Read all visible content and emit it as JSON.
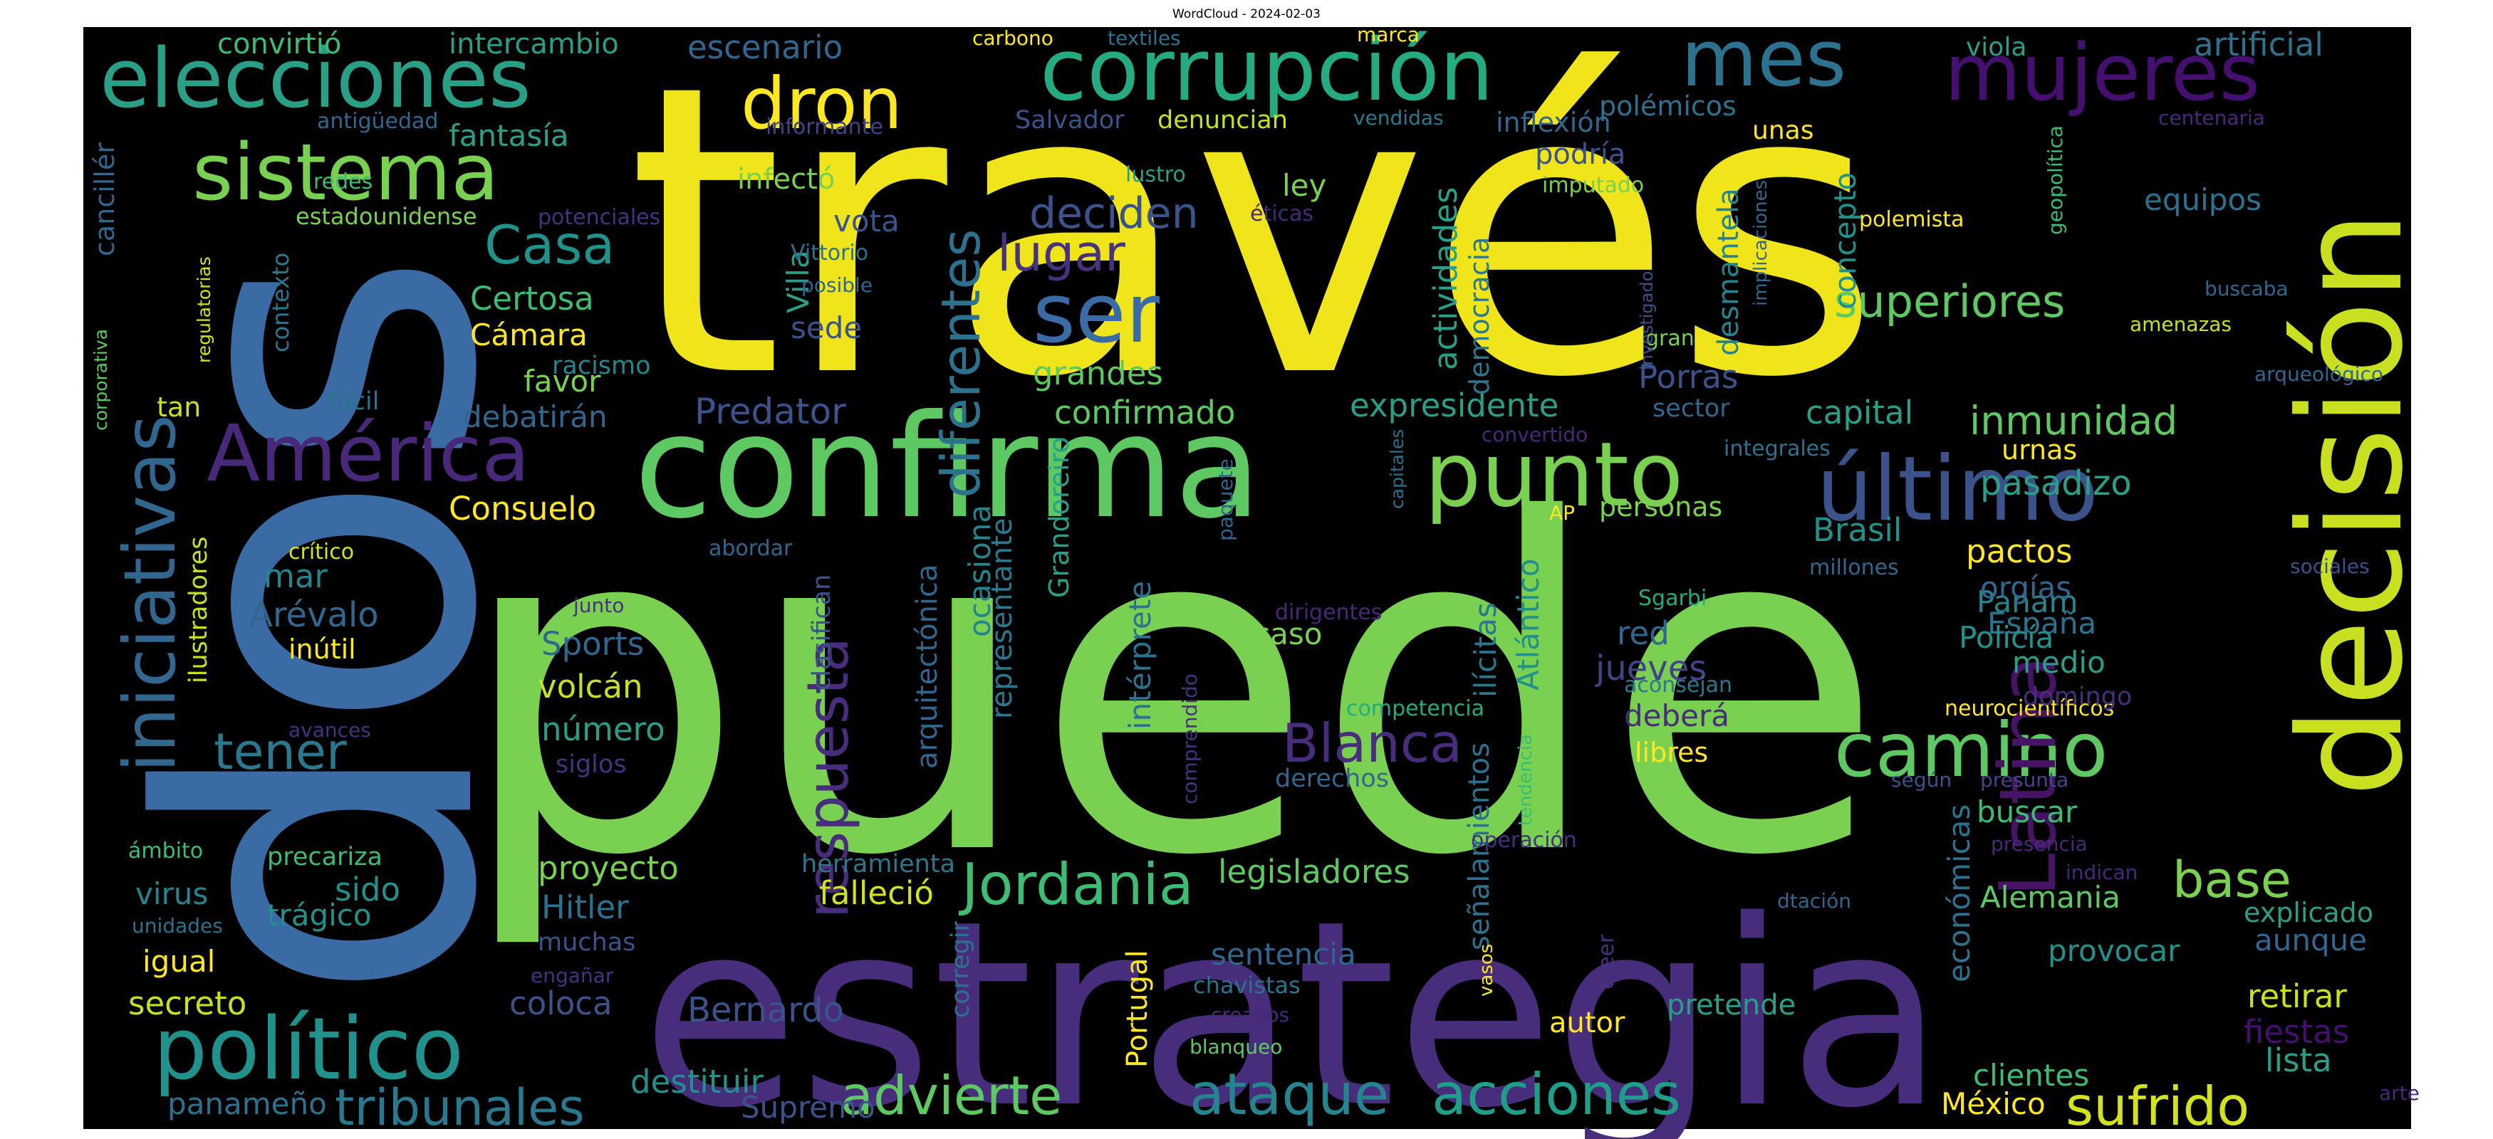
{
  "title": "WordCloud - 2024-02-03",
  "palette": "viridis",
  "background": "#000000",
  "words": [
    {
      "text": "través",
      "color": "#f0e51b",
      "weight": 100
    },
    {
      "text": "puede",
      "color": "#7ad151",
      "weight": 98
    },
    {
      "text": "dos",
      "color": "#3b6ba5",
      "weight": 88
    },
    {
      "text": "estrategia",
      "color": "#472d7b",
      "weight": 82
    },
    {
      "text": "confirma",
      "color": "#5ec962",
      "weight": 60
    },
    {
      "text": "decisión",
      "color": "#c8e020",
      "weight": 52
    },
    {
      "text": "corrupción",
      "color": "#25ab82",
      "weight": 42
    },
    {
      "text": "elecciones",
      "color": "#2a9f87",
      "weight": 40
    },
    {
      "text": "iniciativas",
      "color": "#31668e",
      "weight": 40
    },
    {
      "text": "político",
      "color": "#21918c",
      "weight": 38
    },
    {
      "text": "punto",
      "color": "#7ad151",
      "weight": 36
    },
    {
      "text": "último",
      "color": "#3b528b",
      "weight": 36
    },
    {
      "text": "América",
      "color": "#482878",
      "weight": 34
    },
    {
      "text": "sistema",
      "color": "#7ad151",
      "weight": 32
    },
    {
      "text": "mujeres",
      "color": "#440f6f",
      "weight": 32
    },
    {
      "text": "camino",
      "color": "#5ec962",
      "weight": 32
    },
    {
      "text": "mes",
      "color": "#2c728e",
      "weight": 32
    },
    {
      "text": "Latina",
      "color": "#471365",
      "weight": 30
    },
    {
      "text": "dron",
      "color": "#fde725",
      "weight": 30
    },
    {
      "text": "ser",
      "color": "#3b6ba5",
      "weight": 28
    },
    {
      "text": "respuesta",
      "color": "#472d7b",
      "weight": 26
    },
    {
      "text": "Jordania",
      "color": "#3dbc74",
      "weight": 26
    },
    {
      "text": "ataque",
      "color": "#25858e",
      "weight": 26
    },
    {
      "text": "acciones",
      "color": "#1f9e89",
      "weight": 26
    },
    {
      "text": "tribunales",
      "color": "#2a788e",
      "weight": 24
    },
    {
      "text": "advierte",
      "color": "#5ec962",
      "weight": 24
    },
    {
      "text": "sufrido",
      "color": "#d2e21b",
      "weight": 24
    },
    {
      "text": "diferentes",
      "color": "#2c728e",
      "weight": 24
    },
    {
      "text": "Blanca",
      "color": "#472d7b",
      "weight": 24
    },
    {
      "text": "Casa",
      "color": "#21918c",
      "weight": 22
    },
    {
      "text": "tener",
      "color": "#2a788e",
      "weight": 22
    },
    {
      "text": "base",
      "color": "#7ad151",
      "weight": 22
    },
    {
      "text": "lugar",
      "color": "#46327e",
      "weight": 22
    },
    {
      "text": "superiores",
      "color": "#5ec962",
      "weight": 20
    },
    {
      "text": "deciden",
      "color": "#3b528b",
      "weight": 20
    },
    {
      "text": "inmunidad",
      "color": "#5ec962",
      "weight": 18
    },
    {
      "text": "artificial",
      "color": "#2c728e",
      "weight": 16
    },
    {
      "text": "escenario",
      "color": "#31668e",
      "weight": 16
    },
    {
      "text": "convirtió",
      "color": "#3dbc74",
      "weight": 15
    },
    {
      "text": "intercambio",
      "color": "#2a9f87",
      "weight": 15
    },
    {
      "text": "fantasía",
      "color": "#2a9f87",
      "weight": 15
    },
    {
      "text": "Salvador",
      "color": "#3b528b",
      "weight": 13
    },
    {
      "text": "denuncian",
      "color": "#c8e020",
      "weight": 13
    },
    {
      "text": "vendidas",
      "color": "#2a788e",
      "weight": 12
    },
    {
      "text": "inflexión",
      "color": "#31668e",
      "weight": 15
    },
    {
      "text": "polémicos",
      "color": "#2c728e",
      "weight": 15
    },
    {
      "text": "podría",
      "color": "#3b528b",
      "weight": 15
    },
    {
      "text": "unas",
      "color": "#fde725",
      "weight": 14
    },
    {
      "text": "concepto",
      "color": "#21918c",
      "weight": 15
    },
    {
      "text": "desmantela",
      "color": "#25858e",
      "weight": 15
    },
    {
      "text": "equipos",
      "color": "#2c728e",
      "weight": 16
    },
    {
      "text": "polemista",
      "color": "#fde725",
      "weight": 12
    },
    {
      "text": "geopolítica",
      "color": "#3dbc74",
      "weight": 9
    },
    {
      "text": "implicaciones",
      "color": "#31668e",
      "weight": 9
    },
    {
      "text": "centenaria",
      "color": "#482878",
      "weight": 11
    },
    {
      "text": "viola",
      "color": "#2a9f87",
      "weight": 13
    },
    {
      "text": "marca",
      "color": "#fde725",
      "weight": 11
    },
    {
      "text": "carbono",
      "color": "#fde725",
      "weight": 11
    },
    {
      "text": "textiles",
      "color": "#2c728e",
      "weight": 11
    },
    {
      "text": "antigüedad",
      "color": "#31668e",
      "weight": 11
    },
    {
      "text": "informante",
      "color": "#414487",
      "weight": 11
    },
    {
      "text": "redes",
      "color": "#3dbc74",
      "weight": 11
    },
    {
      "text": "lustro",
      "color": "#2a9f87",
      "weight": 11
    },
    {
      "text": "infectó",
      "color": "#7ad151",
      "weight": 15
    },
    {
      "text": "ley",
      "color": "#7ad151",
      "weight": 15
    },
    {
      "text": "imputado",
      "color": "#7ad151",
      "weight": 11
    },
    {
      "text": "estadounidense",
      "color": "#7ad151",
      "weight": 12
    },
    {
      "text": "potenciales",
      "color": "#46327e",
      "weight": 11
    },
    {
      "text": "éticas",
      "color": "#482878",
      "weight": 11
    },
    {
      "text": "vota",
      "color": "#3b528b",
      "weight": 15
    },
    {
      "text": "Vittorio",
      "color": "#2c728e",
      "weight": 11
    },
    {
      "text": "posible",
      "color": "#31668e",
      "weight": 11
    },
    {
      "text": "investigado",
      "color": "#3b528b",
      "weight": 9
    },
    {
      "text": "gran",
      "color": "#7ad151",
      "weight": 11
    },
    {
      "text": "amenazas",
      "color": "#c8e020",
      "weight": 11
    },
    {
      "text": "buscaba",
      "color": "#31668e",
      "weight": 11
    },
    {
      "text": "arqueológico",
      "color": "#31668e",
      "weight": 11
    },
    {
      "text": "contexto",
      "color": "#2a788e",
      "weight": 12
    },
    {
      "text": "regulatorias",
      "color": "#d2e21b",
      "weight": 9
    },
    {
      "text": "corporativa",
      "color": "#5ec962",
      "weight": 9
    },
    {
      "text": "cancillér",
      "color": "#31668e",
      "weight": 14
    },
    {
      "text": "Villa",
      "color": "#2a9f87",
      "weight": 15
    },
    {
      "text": "sede",
      "color": "#3b528b",
      "weight": 15
    },
    {
      "text": "Certosa",
      "color": "#3dbc74",
      "weight": 15
    },
    {
      "text": "Cámara",
      "color": "#fde725",
      "weight": 15
    },
    {
      "text": "racismo",
      "color": "#25858e",
      "weight": 14
    },
    {
      "text": "favor",
      "color": "#7ad151",
      "weight": 15
    },
    {
      "text": "fácil",
      "color": "#2c728e",
      "weight": 13
    },
    {
      "text": "tan",
      "color": "#c8e020",
      "weight": 15
    },
    {
      "text": "debatirán",
      "color": "#31668e",
      "weight": 15
    },
    {
      "text": "Predator",
      "color": "#3b528b",
      "weight": 16
    },
    {
      "text": "grandes",
      "color": "#5ec962",
      "weight": 15
    },
    {
      "text": "confirmado",
      "color": "#5ec962",
      "weight": 16
    },
    {
      "text": "actividades",
      "color": "#2a9f87",
      "weight": 15
    },
    {
      "text": "democracia",
      "color": "#2a788e",
      "weight": 14
    },
    {
      "text": "expresidente",
      "color": "#2a9f87",
      "weight": 16
    },
    {
      "text": "Porras",
      "color": "#3b528b",
      "weight": 15
    },
    {
      "text": "sector",
      "color": "#31668e",
      "weight": 12
    },
    {
      "text": "capital",
      "color": "#2a9f87",
      "weight": 15
    },
    {
      "text": "convertido",
      "color": "#482878",
      "weight": 11
    },
    {
      "text": "integrales",
      "color": "#2c728e",
      "weight": 11
    },
    {
      "text": "urnas",
      "color": "#fde725",
      "weight": 13
    },
    {
      "text": "pasadizo",
      "color": "#2a9f87",
      "weight": 16
    },
    {
      "text": "capitales",
      "color": "#2c728e",
      "weight": 10
    },
    {
      "text": "paquete",
      "color": "#31668e",
      "weight": 11
    },
    {
      "text": "AP",
      "color": "#fde725",
      "weight": 11
    },
    {
      "text": "personas",
      "color": "#7ad151",
      "weight": 15
    },
    {
      "text": "Consuelo",
      "color": "#fde725",
      "weight": 16
    },
    {
      "text": "Grandoreiro",
      "color": "#2a9f87",
      "weight": 15
    },
    {
      "text": "arquitectónica",
      "color": "#31668e",
      "weight": 14
    },
    {
      "text": "ocasiona",
      "color": "#25858e",
      "weight": 15
    },
    {
      "text": "representante",
      "color": "#2a788e",
      "weight": 14
    },
    {
      "text": "clasifican",
      "color": "#3b528b",
      "weight": 14
    },
    {
      "text": "abordar",
      "color": "#31668e",
      "weight": 11
    },
    {
      "text": "ilustradores",
      "color": "#c8e020",
      "weight": 13
    },
    {
      "text": "crítico",
      "color": "#d2e21b",
      "weight": 11
    },
    {
      "text": "mar",
      "color": "#25858e",
      "weight": 15
    },
    {
      "text": "Arévalo",
      "color": "#31668e",
      "weight": 16
    },
    {
      "text": "inútil",
      "color": "#fde725",
      "weight": 13
    },
    {
      "text": "junto",
      "color": "#46327e",
      "weight": 10
    },
    {
      "text": "Sports",
      "color": "#31668e",
      "weight": 16
    },
    {
      "text": "volcán",
      "color": "#c8e020",
      "weight": 16
    },
    {
      "text": "número",
      "color": "#2a9f87",
      "weight": 16
    },
    {
      "text": "siglos",
      "color": "#46327e",
      "weight": 13
    },
    {
      "text": "avances",
      "color": "#46327e",
      "weight": 11
    },
    {
      "text": "intérprete",
      "color": "#2c728e",
      "weight": 15
    },
    {
      "text": "comprendido",
      "color": "#46327e",
      "weight": 11
    },
    {
      "text": "dirigentes",
      "color": "#482878",
      "weight": 11
    },
    {
      "text": "caso",
      "color": "#7ad151",
      "weight": 15
    },
    {
      "text": "competencia",
      "color": "#25ab82",
      "weight": 12
    },
    {
      "text": "ilícitas",
      "color": "#2a788e",
      "weight": 15
    },
    {
      "text": "Atlántico",
      "color": "#21918c",
      "weight": 15
    },
    {
      "text": "señalamientos",
      "color": "#2c728e",
      "weight": 15
    },
    {
      "text": "tendencia",
      "color": "#3dbc74",
      "weight": 10
    },
    {
      "text": "operación",
      "color": "#46327e",
      "weight": 11
    },
    {
      "text": "Brasil",
      "color": "#21918c",
      "weight": 16
    },
    {
      "text": "millones",
      "color": "#31668e",
      "weight": 11
    },
    {
      "text": "Sgarbi",
      "color": "#25ab82",
      "weight": 11
    },
    {
      "text": "red",
      "color": "#31668e",
      "weight": 14
    },
    {
      "text": "jueves",
      "color": "#414487",
      "weight": 16
    },
    {
      "text": "aconsejan",
      "color": "#2a788e",
      "weight": 11
    },
    {
      "text": "deberá",
      "color": "#472d7b",
      "weight": 15
    },
    {
      "text": "libres",
      "color": "#fde725",
      "weight": 14
    },
    {
      "text": "neurocientíficos",
      "color": "#fde725",
      "weight": 12
    },
    {
      "text": "pactos",
      "color": "#fde725",
      "weight": 16
    },
    {
      "text": "orgías",
      "color": "#31668e",
      "weight": 15
    },
    {
      "text": "España",
      "color": "#2c728e",
      "weight": 15
    },
    {
      "text": "sociales",
      "color": "#3b528b",
      "weight": 11
    },
    {
      "text": "medio",
      "color": "#2a9f87",
      "weight": 15
    },
    {
      "text": "domingo",
      "color": "#472d7b",
      "weight": 12
    },
    {
      "text": "Panam",
      "color": "#25858e",
      "weight": 16
    },
    {
      "text": "Policía",
      "color": "#21918c",
      "weight": 15
    },
    {
      "text": "derechos",
      "color": "#31668e",
      "weight": 13
    },
    {
      "text": "según",
      "color": "#3b528b",
      "weight": 11
    },
    {
      "text": "presunta",
      "color": "#414487",
      "weight": 11
    },
    {
      "text": "buscar",
      "color": "#3dbc74",
      "weight": 15
    },
    {
      "text": "presencia",
      "color": "#482878",
      "weight": 11
    },
    {
      "text": "indican",
      "color": "#482878",
      "weight": 11
    },
    {
      "text": "proyecto",
      "color": "#7ad151",
      "weight": 16
    },
    {
      "text": "herramienta",
      "color": "#2a788e",
      "weight": 13
    },
    {
      "text": "falleció",
      "color": "#d2e21b",
      "weight": 16
    },
    {
      "text": "legisladores",
      "color": "#5ec962",
      "weight": 15
    },
    {
      "text": "económicas",
      "color": "#2c728e",
      "weight": 15
    },
    {
      "text": "Alemania",
      "color": "#5ec962",
      "weight": 15
    },
    {
      "text": "dtación",
      "color": "#31668e",
      "weight": 11
    },
    {
      "text": "explicado",
      "color": "#2a9f87",
      "weight": 14
    },
    {
      "text": "aunque",
      "color": "#31668e",
      "weight": 15
    },
    {
      "text": "provocar",
      "color": "#21918c",
      "weight": 15
    },
    {
      "text": "retirar",
      "color": "#c8e020",
      "weight": 15
    },
    {
      "text": "fiestas",
      "color": "#440f6f",
      "weight": 15
    },
    {
      "text": "lista",
      "color": "#2a9f87",
      "weight": 15
    },
    {
      "text": "arte",
      "color": "#482878",
      "weight": 11
    },
    {
      "text": "México",
      "color": "#fde725",
      "weight": 15
    },
    {
      "text": "clientes",
      "color": "#3dbc74",
      "weight": 15
    },
    {
      "text": "virus",
      "color": "#25858e",
      "weight": 15
    },
    {
      "text": "ámbito",
      "color": "#3dbc74",
      "weight": 11
    },
    {
      "text": "precariza",
      "color": "#3dbc74",
      "weight": 13
    },
    {
      "text": "sido",
      "color": "#21918c",
      "weight": 15
    },
    {
      "text": "trágico",
      "color": "#21918c",
      "weight": 15
    },
    {
      "text": "unidades",
      "color": "#2c728e",
      "weight": 11
    },
    {
      "text": "igual",
      "color": "#fde725",
      "weight": 15
    },
    {
      "text": "secreto",
      "color": "#c8e020",
      "weight": 15
    },
    {
      "text": "Hitler",
      "color": "#2c728e",
      "weight": 15
    },
    {
      "text": "muchas",
      "color": "#3b528b",
      "weight": 13
    },
    {
      "text": "engañar",
      "color": "#46327e",
      "weight": 11
    },
    {
      "text": "coloca",
      "color": "#3b528b",
      "weight": 15
    },
    {
      "text": "Bernardo",
      "color": "#3b528b",
      "weight": 16
    },
    {
      "text": "corregir",
      "color": "#2c728e",
      "weight": 13
    },
    {
      "text": "Portugal",
      "color": "#fde725",
      "weight": 15
    },
    {
      "text": "sentencia",
      "color": "#31668e",
      "weight": 15
    },
    {
      "text": "chavistas",
      "color": "#2c728e",
      "weight": 12
    },
    {
      "text": "creados",
      "color": "#482878",
      "weight": 11
    },
    {
      "text": "blanqueo",
      "color": "#5ec962",
      "weight": 11
    },
    {
      "text": "vasos",
      "color": "#fde725",
      "weight": 10
    },
    {
      "text": "creer",
      "color": "#46327e",
      "weight": 12
    },
    {
      "text": "autor",
      "color": "#fde725",
      "weight": 14
    },
    {
      "text": "pretende",
      "color": "#2a9f87",
      "weight": 15
    },
    {
      "text": "panameño",
      "color": "#2c728e",
      "weight": 15
    },
    {
      "text": "Supremo",
      "color": "#3b528b",
      "weight": 15
    },
    {
      "text": "destituir",
      "color": "#21918c",
      "weight": 15
    }
  ]
}
